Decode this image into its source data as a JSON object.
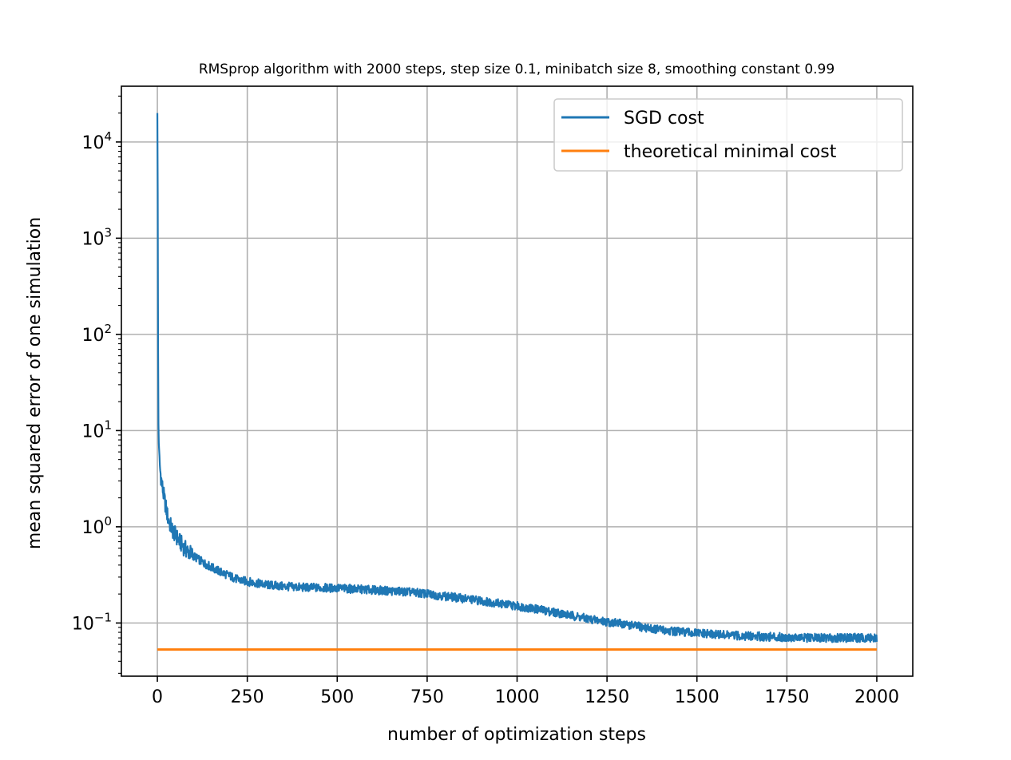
{
  "chart_data": {
    "type": "line",
    "title": "RMSprop algorithm with 2000 steps, step size 0.1, minibatch size 8, smoothing constant 0.99",
    "xlabel": "number of optimization steps",
    "ylabel": "mean squared error of one simulation",
    "xlim": [
      -100,
      2100
    ],
    "ylim": [
      0.028,
      38000
    ],
    "yscale": "log",
    "grid": true,
    "legend_position": "top-right",
    "x_ticks": [
      0,
      250,
      500,
      750,
      1000,
      1250,
      1500,
      1750,
      2000
    ],
    "x_tick_labels": [
      "0",
      "250",
      "500",
      "750",
      "1000",
      "1250",
      "1500",
      "1750",
      "2000"
    ],
    "y_ticks": [
      0.1,
      1,
      10,
      100,
      1000,
      10000
    ],
    "y_tick_labels": [
      {
        "base": "10",
        "exp": "−1"
      },
      {
        "base": "10",
        "exp": "0"
      },
      {
        "base": "10",
        "exp": "1"
      },
      {
        "base": "10",
        "exp": "2"
      },
      {
        "base": "10",
        "exp": "3"
      },
      {
        "base": "10",
        "exp": "4"
      }
    ],
    "series": [
      {
        "name": "SGD cost",
        "color": "#1f77b4",
        "x": [
          0,
          1,
          2,
          3,
          5,
          8,
          12,
          16,
          20,
          25,
          30,
          40,
          50,
          60,
          75,
          100,
          125,
          150,
          175,
          200,
          225,
          250,
          275,
          300,
          350,
          400,
          450,
          500,
          550,
          600,
          650,
          700,
          750,
          800,
          850,
          900,
          950,
          1000,
          1050,
          1100,
          1150,
          1200,
          1250,
          1300,
          1350,
          1400,
          1450,
          1500,
          1550,
          1600,
          1650,
          1700,
          1750,
          1800,
          1850,
          1900,
          1950,
          2000
        ],
        "values": [
          20000,
          3000,
          80,
          12,
          5.5,
          3.8,
          2.9,
          2.3,
          1.9,
          1.5,
          1.2,
          0.95,
          0.82,
          0.72,
          0.6,
          0.5,
          0.43,
          0.38,
          0.34,
          0.31,
          0.28,
          0.27,
          0.26,
          0.25,
          0.24,
          0.235,
          0.232,
          0.23,
          0.225,
          0.22,
          0.215,
          0.21,
          0.2,
          0.19,
          0.18,
          0.17,
          0.16,
          0.15,
          0.14,
          0.13,
          0.12,
          0.11,
          0.103,
          0.097,
          0.09,
          0.085,
          0.081,
          0.078,
          0.076,
          0.074,
          0.073,
          0.072,
          0.071,
          0.07,
          0.07,
          0.07,
          0.07,
          0.07
        ]
      },
      {
        "name": "theoretical minimal cost",
        "color": "#ff7f0e",
        "x": [
          0,
          2000
        ],
        "values": [
          0.053,
          0.053
        ]
      }
    ]
  }
}
